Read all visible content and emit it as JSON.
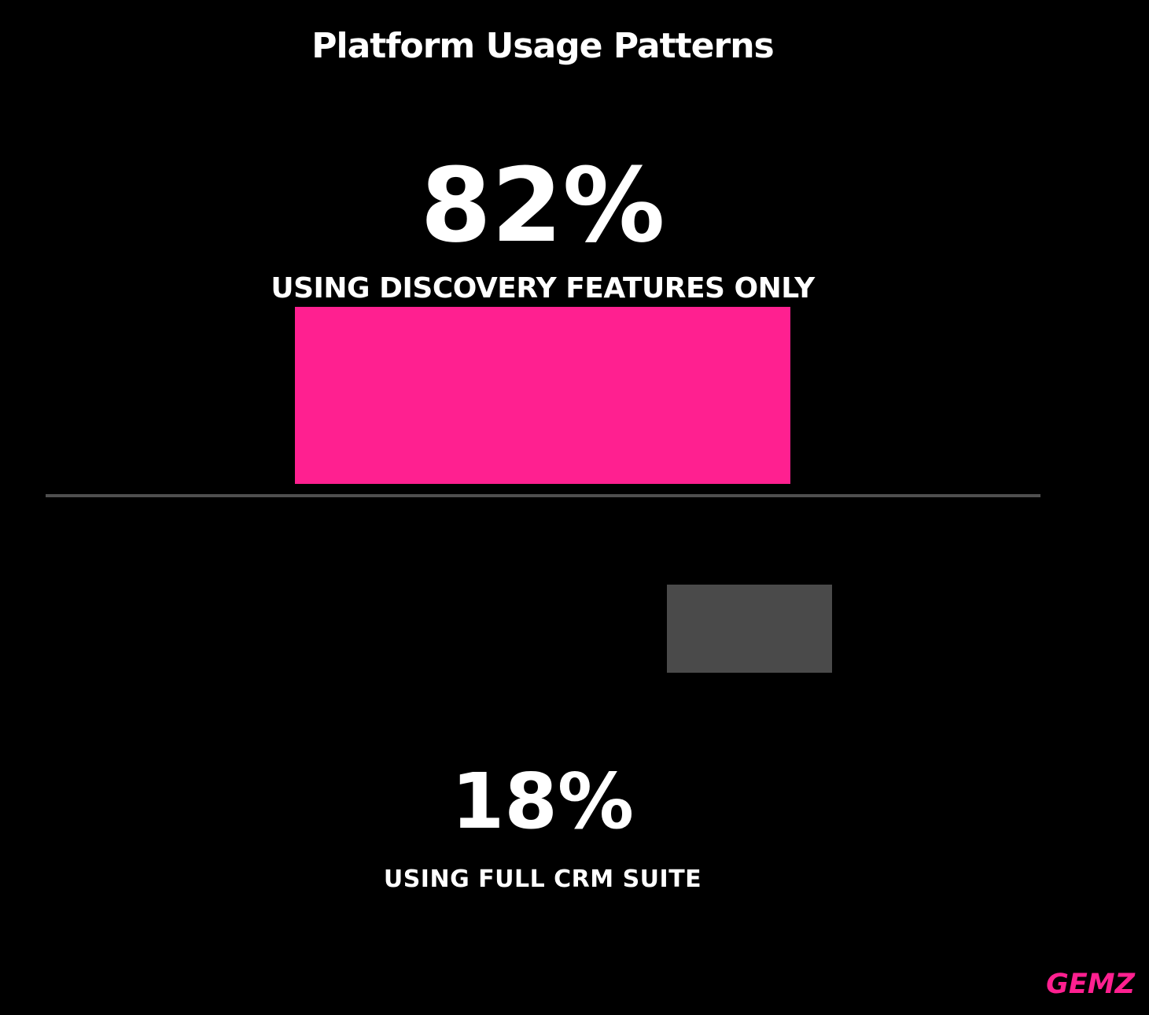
{
  "chart_data": {
    "type": "bar",
    "title": "Platform Usage Patterns",
    "categories": [
      "USING DISCOVERY FEATURES ONLY",
      "USING FULL CRM SUITE"
    ],
    "values": [
      82,
      18
    ],
    "value_labels": [
      "82%",
      "18%"
    ],
    "bar_colors": [
      "#FF2090",
      "#4A4A4A"
    ],
    "xlabel": "",
    "ylabel": "",
    "legend_position": "none",
    "grid": false,
    "background": "#000000",
    "text_color": "#FFFFFF",
    "layout": "two stacked panels separated by a horizontal divider line; top panel shows big percentage, category label and pink bar; bottom panel shows gray bar, big percentage and category label"
  },
  "segments": [
    {
      "value_label": "82%",
      "label": "USING DISCOVERY FEATURES ONLY"
    },
    {
      "value_label": "18%",
      "label": "USING FULL CRM SUITE"
    }
  ],
  "brand": {
    "label": "GEMZ",
    "color": "#FF2090"
  },
  "colors": {
    "background": "#000000",
    "text": "#FFFFFF",
    "accent_pink": "#FF2090",
    "bar_gray": "#4A4A4A",
    "divider": "#4F4F4F"
  }
}
